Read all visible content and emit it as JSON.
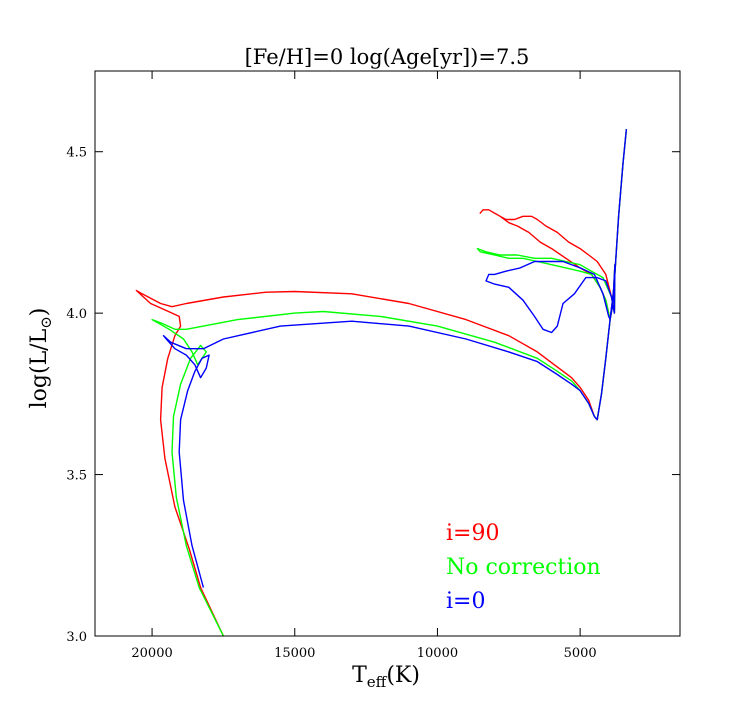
{
  "chart_data": {
    "type": "line",
    "title": "[Fe/H]=0 log(Age[yr])=7.5",
    "xlabel": {
      "main": "T",
      "sub": "eff",
      "tail": "(K)"
    },
    "ylabel": {
      "main": "log(L/L",
      "sym": "⊙",
      "tail": ")"
    },
    "xlim": [
      22000,
      1500
    ],
    "ylim": [
      3.0,
      4.75
    ],
    "x_ticks": [
      20000,
      15000,
      10000,
      5000
    ],
    "x_tick_labels": [
      "20000",
      "15000",
      "10000",
      "5000"
    ],
    "y_ticks": [
      3.0,
      3.5,
      4.0,
      4.5
    ],
    "y_tick_labels": [
      "3.0",
      "3.5",
      "4.0",
      "4.5"
    ],
    "grid": false,
    "legend_position": "lower-right",
    "series": [
      {
        "name": "i=90",
        "color": "#ff0000",
        "points": [
          [
            17500,
            3.0
          ],
          [
            18300,
            3.15
          ],
          [
            18700,
            3.27
          ],
          [
            19200,
            3.4
          ],
          [
            19550,
            3.55
          ],
          [
            19700,
            3.67
          ],
          [
            19650,
            3.77
          ],
          [
            19450,
            3.86
          ],
          [
            19200,
            3.93
          ],
          [
            19000,
            3.96
          ],
          [
            19050,
            3.99
          ],
          [
            19550,
            4.01
          ],
          [
            20050,
            4.03
          ],
          [
            20550,
            4.07
          ],
          [
            20350,
            4.06
          ],
          [
            19700,
            4.03
          ],
          [
            19300,
            4.02
          ],
          [
            18800,
            4.03
          ],
          [
            17500,
            4.05
          ],
          [
            16000,
            4.065
          ],
          [
            15000,
            4.067
          ],
          [
            13000,
            4.06
          ],
          [
            11000,
            4.03
          ],
          [
            9000,
            3.98
          ],
          [
            7500,
            3.93
          ],
          [
            6500,
            3.88
          ],
          [
            5900,
            3.84
          ],
          [
            5300,
            3.8
          ],
          [
            5000,
            3.77
          ],
          [
            4700,
            3.73
          ],
          [
            4500,
            3.68
          ],
          [
            4400,
            3.67
          ],
          [
            4250,
            3.75
          ],
          [
            4100,
            3.86
          ],
          [
            3950,
            3.98
          ],
          [
            3850,
            4.03
          ],
          [
            3780,
            4.15
          ],
          [
            3800,
            4.0
          ],
          [
            3900,
            4.05
          ],
          [
            4100,
            4.12
          ],
          [
            4400,
            4.16
          ],
          [
            4700,
            4.18
          ],
          [
            5000,
            4.2
          ],
          [
            5400,
            4.22
          ],
          [
            5800,
            4.25
          ],
          [
            6200,
            4.27
          ],
          [
            6500,
            4.29
          ],
          [
            6700,
            4.3
          ],
          [
            7000,
            4.3
          ],
          [
            7300,
            4.29
          ],
          [
            7600,
            4.29
          ],
          [
            7800,
            4.3
          ],
          [
            8000,
            4.31
          ],
          [
            8200,
            4.32
          ],
          [
            8400,
            4.32
          ],
          [
            8500,
            4.31
          ],
          [
            8400,
            4.32
          ],
          [
            8200,
            4.32
          ],
          [
            7800,
            4.3
          ],
          [
            7500,
            4.28
          ],
          [
            7200,
            4.27
          ],
          [
            6800,
            4.25
          ],
          [
            6400,
            4.22
          ],
          [
            6000,
            4.2
          ],
          [
            5500,
            4.17
          ],
          [
            5000,
            4.14
          ],
          [
            4600,
            4.12
          ],
          [
            4300,
            4.08
          ],
          [
            4100,
            4.04
          ],
          [
            3950,
            3.98
          ],
          [
            3850,
            4.05
          ],
          [
            3800,
            4.1
          ],
          [
            3650,
            4.3
          ],
          [
            3500,
            4.46
          ],
          [
            3380,
            4.57
          ]
        ]
      },
      {
        "name": "No correction",
        "color": "#00ff00",
        "points": [
          [
            17500,
            3.0
          ],
          [
            18350,
            3.15
          ],
          [
            18800,
            3.28
          ],
          [
            19150,
            3.43
          ],
          [
            19300,
            3.57
          ],
          [
            19250,
            3.68
          ],
          [
            19000,
            3.78
          ],
          [
            18650,
            3.86
          ],
          [
            18300,
            3.9
          ],
          [
            18100,
            3.88
          ],
          [
            18400,
            3.84
          ],
          [
            18600,
            3.88
          ],
          [
            18900,
            3.92
          ],
          [
            19400,
            3.95
          ],
          [
            19800,
            3.97
          ],
          [
            20000,
            3.98
          ],
          [
            19700,
            3.97
          ],
          [
            19200,
            3.95
          ],
          [
            18800,
            3.95
          ],
          [
            17000,
            3.98
          ],
          [
            15000,
            4.0
          ],
          [
            14000,
            4.005
          ],
          [
            12000,
            3.99
          ],
          [
            10000,
            3.96
          ],
          [
            8000,
            3.91
          ],
          [
            6500,
            3.86
          ],
          [
            5800,
            3.82
          ],
          [
            5300,
            3.79
          ],
          [
            5000,
            3.76
          ],
          [
            4700,
            3.72
          ],
          [
            4500,
            3.68
          ],
          [
            4400,
            3.67
          ],
          [
            4250,
            3.75
          ],
          [
            4100,
            3.86
          ],
          [
            3950,
            3.98
          ],
          [
            3850,
            4.03
          ],
          [
            3780,
            4.15
          ],
          [
            3800,
            4.0
          ],
          [
            3900,
            4.05
          ],
          [
            4200,
            4.11
          ],
          [
            4600,
            4.13
          ],
          [
            5000,
            4.15
          ],
          [
            5500,
            4.16
          ],
          [
            6000,
            4.17
          ],
          [
            6600,
            4.17
          ],
          [
            7200,
            4.18
          ],
          [
            7800,
            4.18
          ],
          [
            8300,
            4.19
          ],
          [
            8600,
            4.2
          ],
          [
            8500,
            4.19
          ],
          [
            8000,
            4.18
          ],
          [
            7500,
            4.17
          ],
          [
            7000,
            4.17
          ],
          [
            6500,
            4.16
          ],
          [
            6000,
            4.15
          ],
          [
            5500,
            4.14
          ],
          [
            5000,
            4.13
          ],
          [
            4600,
            4.12
          ],
          [
            4300,
            4.08
          ],
          [
            4100,
            4.04
          ],
          [
            3950,
            3.98
          ],
          [
            3850,
            4.05
          ],
          [
            3800,
            4.1
          ],
          [
            3650,
            4.3
          ],
          [
            3500,
            4.46
          ],
          [
            3380,
            4.57
          ]
        ]
      },
      {
        "name": "i=0",
        "color": "#0000ff",
        "points": [
          [
            18200,
            3.15
          ],
          [
            18600,
            3.28
          ],
          [
            18900,
            3.42
          ],
          [
            19050,
            3.57
          ],
          [
            19000,
            3.67
          ],
          [
            18750,
            3.76
          ],
          [
            18500,
            3.82
          ],
          [
            18250,
            3.86
          ],
          [
            18000,
            3.87
          ],
          [
            18100,
            3.83
          ],
          [
            18300,
            3.8
          ],
          [
            18500,
            3.84
          ],
          [
            18800,
            3.87
          ],
          [
            19200,
            3.89
          ],
          [
            19500,
            3.92
          ],
          [
            19600,
            3.93
          ],
          [
            19350,
            3.91
          ],
          [
            18800,
            3.89
          ],
          [
            18200,
            3.89
          ],
          [
            17500,
            3.92
          ],
          [
            15500,
            3.96
          ],
          [
            13000,
            3.975
          ],
          [
            11000,
            3.96
          ],
          [
            9000,
            3.92
          ],
          [
            7500,
            3.88
          ],
          [
            6500,
            3.85
          ],
          [
            5800,
            3.81
          ],
          [
            5300,
            3.78
          ],
          [
            5000,
            3.76
          ],
          [
            4700,
            3.72
          ],
          [
            4500,
            3.68
          ],
          [
            4400,
            3.67
          ],
          [
            4250,
            3.75
          ],
          [
            4100,
            3.86
          ],
          [
            3950,
            3.98
          ],
          [
            3850,
            4.03
          ],
          [
            3780,
            4.15
          ],
          [
            3800,
            4.0
          ],
          [
            3900,
            4.05
          ],
          [
            4100,
            4.1
          ],
          [
            4400,
            4.11
          ],
          [
            4800,
            4.11
          ],
          [
            5200,
            4.06
          ],
          [
            5600,
            4.03
          ],
          [
            5800,
            3.96
          ],
          [
            6000,
            3.94
          ],
          [
            6300,
            3.95
          ],
          [
            6600,
            3.99
          ],
          [
            7000,
            4.04
          ],
          [
            7500,
            4.08
          ],
          [
            8000,
            4.09
          ],
          [
            8300,
            4.1
          ],
          [
            8200,
            4.12
          ],
          [
            8000,
            4.12
          ],
          [
            7600,
            4.13
          ],
          [
            7100,
            4.14
          ],
          [
            6600,
            4.16
          ],
          [
            6200,
            4.16
          ],
          [
            5600,
            4.16
          ],
          [
            5000,
            4.14
          ],
          [
            4500,
            4.12
          ],
          [
            4200,
            4.06
          ],
          [
            4000,
            3.99
          ],
          [
            3950,
            3.98
          ],
          [
            3850,
            4.05
          ],
          [
            3800,
            4.1
          ],
          [
            3650,
            4.3
          ],
          [
            3500,
            4.46
          ],
          [
            3380,
            4.57
          ]
        ]
      }
    ]
  }
}
